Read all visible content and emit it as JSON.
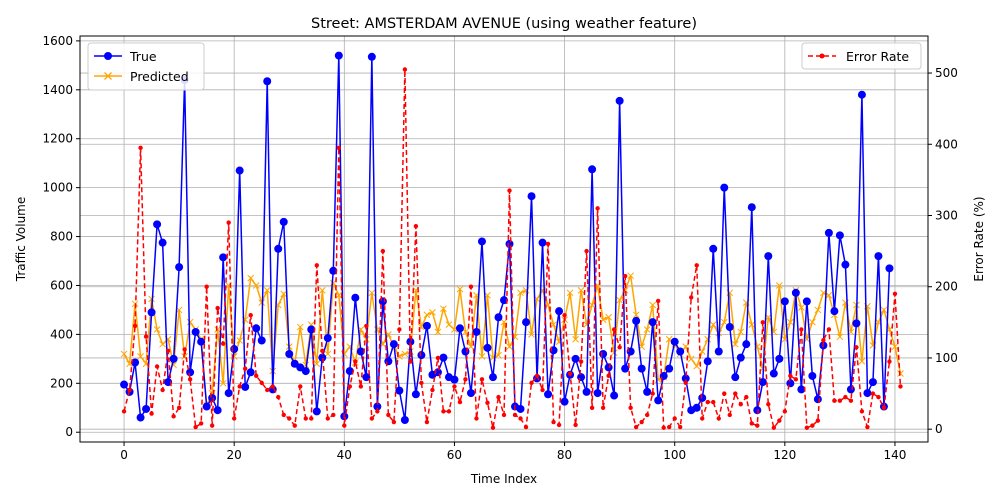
{
  "chart_data": {
    "type": "line",
    "title": "Street: AMSTERDAM AVENUE (using weather feature)",
    "xlabel": "Time Index",
    "ylabel": "Traffic Volume",
    "y2label": "Error Rate (%)",
    "xlim": [
      -8,
      146
    ],
    "ylim": [
      -40,
      1620
    ],
    "y2lim": [
      -18,
      552
    ],
    "xticks": [
      0,
      20,
      40,
      60,
      80,
      100,
      120,
      140
    ],
    "yticks": [
      0,
      200,
      400,
      600,
      800,
      1000,
      1200,
      1400,
      1600
    ],
    "y2ticks": [
      0,
      100,
      200,
      300,
      400,
      500
    ],
    "grid": true,
    "legend_left": "upper-left",
    "legend_right": "upper-right",
    "colors": {
      "true": "#0000ff",
      "predicted": "#ffa500",
      "error": "#ff0000"
    },
    "series": [
      {
        "name": "True",
        "axis": "left",
        "values": [
          195,
          165,
          285,
          60,
          95,
          490,
          850,
          775,
          205,
          300,
          675,
          1440,
          245,
          410,
          370,
          105,
          140,
          90,
          715,
          160,
          340,
          1070,
          185,
          245,
          425,
          375,
          1435,
          175,
          750,
          860,
          320,
          280,
          265,
          250,
          420,
          85,
          305,
          385,
          660,
          1540,
          65,
          250,
          550,
          330,
          225,
          1535,
          105,
          535,
          290,
          360,
          170,
          50,
          370,
          155,
          315,
          435,
          235,
          245,
          305,
          225,
          215,
          425,
          330,
          160,
          410,
          780,
          345,
          225,
          470,
          540,
          770,
          105,
          95,
          450,
          965,
          220,
          775,
          155,
          335,
          495,
          125,
          235,
          300,
          225,
          165,
          1075,
          160,
          320,
          265,
          150,
          1355,
          260,
          330,
          455,
          260,
          165,
          450,
          130,
          230,
          260,
          370,
          330,
          220,
          90,
          100,
          140,
          290,
          750,
          330,
          1000,
          430,
          225,
          305,
          360,
          920,
          90,
          205,
          720,
          240,
          300,
          535,
          200,
          570,
          175,
          535,
          230,
          135,
          355,
          815,
          495,
          805,
          685,
          175,
          445,
          1380,
          160,
          205,
          720,
          105,
          670
        ]
      },
      {
        "name": "Predicted",
        "axis": "left",
        "values": [
          320,
          280,
          525,
          310,
          280,
          545,
          420,
          360,
          380,
          275,
          500,
          310,
          450,
          420,
          380,
          110,
          160,
          420,
          200,
          600,
          310,
          375,
          460,
          630,
          600,
          530,
          580,
          250,
          520,
          565,
          350,
          280,
          430,
          275,
          440,
          280,
          580,
          320,
          610,
          560,
          320,
          350,
          285,
          420,
          380,
          570,
          420,
          360,
          400,
          350,
          310,
          320,
          330,
          580,
          430,
          480,
          490,
          410,
          505,
          440,
          420,
          585,
          410,
          350,
          560,
          310,
          560,
          305,
          315,
          450,
          350,
          390,
          570,
          580,
          400,
          545,
          580,
          520,
          440,
          370,
          460,
          570,
          380,
          580,
          440,
          520,
          600,
          460,
          470,
          325,
          540,
          580,
          640,
          480,
          350,
          420,
          520,
          215,
          225,
          380,
          360,
          320,
          350,
          300,
          270,
          330,
          380,
          440,
          405,
          450,
          570,
          360,
          410,
          530,
          440,
          350,
          260,
          470,
          410,
          600,
          380,
          450,
          580,
          510,
          380,
          450,
          500,
          570,
          560,
          480,
          390,
          530,
          410,
          520,
          290,
          515,
          355,
          450,
          500,
          420,
          350,
          240
        ]
      },
      {
        "name": "Error Rate",
        "axis": "right",
        "values": [
          25,
          55,
          145,
          395,
          130,
          22,
          88,
          55,
          110,
          18,
          30,
          112,
          70,
          3,
          8,
          200,
          5,
          170,
          120,
          290,
          15,
          60,
          85,
          160,
          75,
          65,
          55,
          60,
          45,
          20,
          15,
          5,
          60,
          15,
          15,
          230,
          110,
          15,
          20,
          395,
          5,
          60,
          95,
          60,
          145,
          15,
          25,
          250,
          20,
          10,
          140,
          505,
          95,
          285,
          65,
          10,
          55,
          100,
          25,
          25,
          60,
          38,
          70,
          200,
          15,
          70,
          37,
          2,
          45,
          20,
          335,
          20,
          15,
          3,
          65,
          75,
          55,
          260,
          10,
          6,
          160,
          78,
          6,
          95,
          250,
          30,
          310,
          30,
          75,
          140,
          115,
          215,
          30,
          3,
          10,
          20,
          50,
          180,
          2,
          3,
          15,
          3,
          65,
          185,
          230,
          15,
          38,
          38,
          15,
          50,
          20,
          50,
          35,
          45,
          8,
          5,
          150,
          35,
          2,
          12,
          25,
          75,
          70,
          140,
          2,
          5,
          12,
          125,
          140,
          40,
          40,
          45,
          40,
          115,
          25,
          3,
          50,
          45,
          30,
          95,
          190,
          60
        ]
      }
    ]
  }
}
